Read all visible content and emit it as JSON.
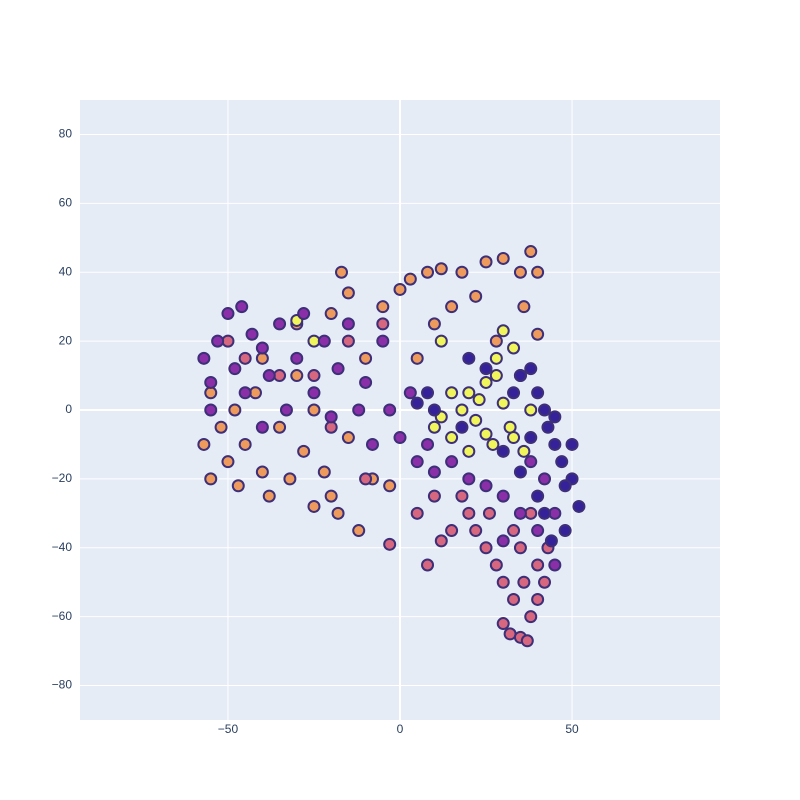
{
  "chart_data": {
    "type": "scatter",
    "xlim": [
      -93,
      93
    ],
    "ylim": [
      -90,
      90
    ],
    "xticks": [
      {
        "value": -50,
        "label": "−50"
      },
      0,
      50
    ],
    "yticks": [
      {
        "value": -80,
        "label": "−80"
      },
      {
        "value": -60,
        "label": "−60"
      },
      {
        "value": -40,
        "label": "−40"
      },
      {
        "value": -20,
        "label": "−20"
      },
      0,
      20,
      40,
      60,
      80
    ],
    "grid": true,
    "background": "#e5ecf6",
    "marker_line_color": "#3d2f78",
    "series": [
      {
        "color": "#ee9a5c",
        "x": [
          -57,
          -55,
          -52,
          -50,
          -48,
          -47,
          -45,
          -42,
          -40,
          -38,
          -35,
          -32,
          -30,
          -28,
          -25,
          -22,
          -20,
          -18,
          -15,
          -12,
          -8,
          -3,
          -20,
          -15,
          -17,
          -5,
          0,
          3,
          8,
          12,
          18,
          22,
          25,
          30,
          35,
          38,
          40,
          36,
          40,
          10,
          15,
          28,
          -30,
          -10,
          5,
          -40,
          -25,
          -55
        ],
        "values": [
          -10,
          -20,
          -5,
          -15,
          0,
          -22,
          -10,
          5,
          -18,
          -25,
          -5,
          -20,
          10,
          -12,
          -28,
          -18,
          -25,
          -30,
          -8,
          -35,
          -20,
          -22,
          28,
          34,
          40,
          30,
          35,
          38,
          40,
          41,
          40,
          33,
          43,
          44,
          40,
          46,
          40,
          30,
          22,
          25,
          30,
          20,
          25,
          15,
          15,
          15,
          0,
          5
        ]
      },
      {
        "color": "#d6677f",
        "x": [
          30,
          32,
          35,
          37,
          38,
          33,
          36,
          40,
          42,
          30,
          28,
          25,
          22,
          20,
          18,
          35,
          33,
          40,
          43,
          15,
          12,
          8,
          5,
          -3,
          10,
          -10,
          -20,
          -35,
          -45,
          -50,
          -15,
          -5,
          -25,
          26,
          38
        ],
        "values": [
          -62,
          -65,
          -66,
          -67,
          -60,
          -55,
          -50,
          -55,
          -50,
          -50,
          -45,
          -40,
          -35,
          -30,
          -25,
          -40,
          -35,
          -45,
          -40,
          -35,
          -38,
          -45,
          -30,
          -39,
          -25,
          -20,
          -5,
          10,
          15,
          20,
          20,
          25,
          10,
          -30,
          -30
        ]
      },
      {
        "color": "#eff55a",
        "x": [
          10,
          12,
          15,
          18,
          20,
          22,
          25,
          27,
          28,
          30,
          32,
          33,
          35,
          36,
          38,
          30,
          25,
          20,
          15,
          12,
          -25,
          -30,
          33,
          28,
          23
        ],
        "values": [
          -5,
          -2,
          -8,
          0,
          5,
          -3,
          8,
          -10,
          15,
          2,
          -5,
          18,
          10,
          -12,
          0,
          23,
          -7,
          -12,
          5,
          20,
          20,
          26,
          -8,
          10,
          3
        ]
      },
      {
        "color": "#8a2fa8",
        "x": [
          -57,
          -55,
          -53,
          -50,
          -48,
          -46,
          -45,
          -43,
          -40,
          -38,
          -35,
          -33,
          -30,
          -28,
          -25,
          -22,
          -20,
          -18,
          -15,
          -12,
          -10,
          -8,
          -5,
          -3,
          0,
          3,
          5,
          8,
          10,
          15,
          20,
          25,
          30,
          35,
          40,
          45,
          42,
          38,
          30,
          45,
          -55,
          -40
        ],
        "values": [
          15,
          8,
          20,
          28,
          12,
          30,
          5,
          22,
          18,
          10,
          25,
          0,
          15,
          28,
          5,
          20,
          -2,
          12,
          25,
          0,
          8,
          -10,
          20,
          0,
          -8,
          5,
          -15,
          -10,
          -18,
          -15,
          -20,
          -22,
          -25,
          -30,
          -35,
          -30,
          -20,
          -15,
          -38,
          -45,
          0,
          -5
        ]
      },
      {
        "color": "#35229a",
        "x": [
          5,
          8,
          10,
          20,
          25,
          35,
          38,
          40,
          42,
          43,
          45,
          47,
          50,
          52,
          48,
          44,
          40,
          35,
          30,
          45,
          48,
          42,
          38,
          50,
          33,
          18
        ],
        "values": [
          2,
          5,
          0,
          15,
          12,
          10,
          12,
          5,
          0,
          -5,
          -10,
          -15,
          -20,
          -28,
          -35,
          -38,
          -25,
          -18,
          -12,
          -2,
          -22,
          -30,
          -8,
          -10,
          5,
          -5
        ]
      }
    ]
  }
}
